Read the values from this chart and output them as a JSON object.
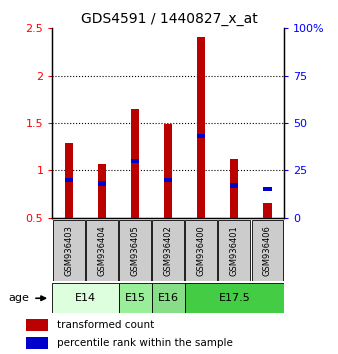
{
  "title": "GDS4591 / 1440827_x_at",
  "samples": [
    "GSM936403",
    "GSM936404",
    "GSM936405",
    "GSM936402",
    "GSM936400",
    "GSM936401",
    "GSM936406"
  ],
  "transformed_counts": [
    1.29,
    1.07,
    1.65,
    1.49,
    2.41,
    1.12,
    0.66
  ],
  "percentile_values": [
    20,
    18,
    30,
    20,
    43,
    17,
    15
  ],
  "bar_bottom": 0.5,
  "ylim_left": [
    0.5,
    2.5
  ],
  "ylim_right": [
    0,
    100
  ],
  "yticks_left": [
    0.5,
    1.0,
    1.5,
    2.0,
    2.5
  ],
  "ytick_labels_left": [
    "0.5",
    "1",
    "1.5",
    "2",
    "2.5"
  ],
  "yticks_right": [
    0,
    25,
    50,
    75,
    100
  ],
  "ytick_labels_right": [
    "0",
    "25",
    "50",
    "75",
    "100%"
  ],
  "bar_color": "#BB0000",
  "percentile_color": "#0000CC",
  "bar_width": 0.25,
  "age_groups": [
    {
      "label": "E14",
      "start": 0,
      "end": 2,
      "color": "#DDFFDD"
    },
    {
      "label": "E15",
      "start": 2,
      "end": 3,
      "color": "#99EE99"
    },
    {
      "label": "E16",
      "start": 3,
      "end": 4,
      "color": "#88DD88"
    },
    {
      "label": "E17.5",
      "start": 4,
      "end": 7,
      "color": "#44CC44"
    }
  ],
  "sample_bg_color": "#CCCCCC",
  "background_color": "#ffffff"
}
